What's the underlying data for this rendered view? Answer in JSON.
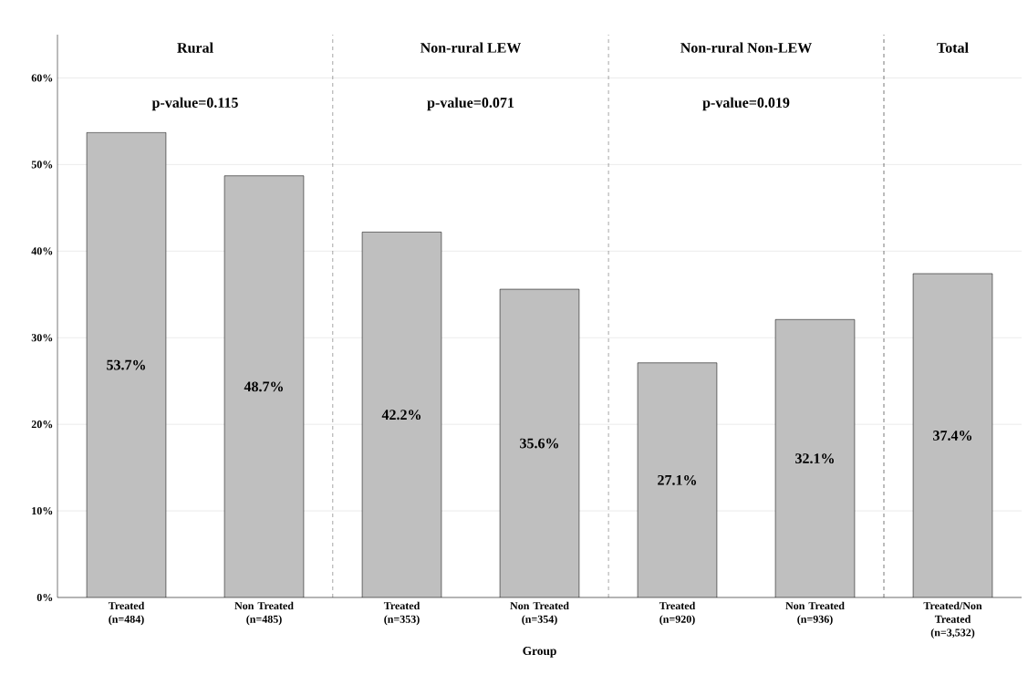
{
  "chart_data": {
    "type": "bar",
    "xlabel": "Group",
    "categories": [
      "Treated (n=484)",
      "Non Treated (n=485)",
      "Treated (n=353)",
      "Non Treated (n=354)",
      "Treated (n=920)",
      "Non Treated (n=936)",
      "Treated/Non Treated (n=3,532)"
    ],
    "values": [
      53.7,
      48.7,
      42.2,
      35.6,
      27.1,
      32.1,
      37.4
    ],
    "value_labels": [
      "53.7%",
      "48.7%",
      "42.2%",
      "35.6%",
      "27.1%",
      "32.1%",
      "37.4%"
    ],
    "color": "#bfbfbf",
    "ylim": [
      0,
      65
    ],
    "yticks": [
      {
        "value": 0,
        "label": "0%"
      },
      {
        "value": 10,
        "label": "10%"
      },
      {
        "value": 20,
        "label": "20%"
      },
      {
        "value": 30,
        "label": "30%"
      },
      {
        "value": 40,
        "label": "40%"
      },
      {
        "value": 50,
        "label": "50%"
      },
      {
        "value": 60,
        "label": "60%"
      }
    ],
    "grid": "y",
    "annotations": [
      "Rural",
      "p-value=0.115",
      "Non-rural LEW",
      "p-value=0.071",
      "Non-rural Non-LEW",
      "p-value=0.019",
      "Total"
    ]
  }
}
